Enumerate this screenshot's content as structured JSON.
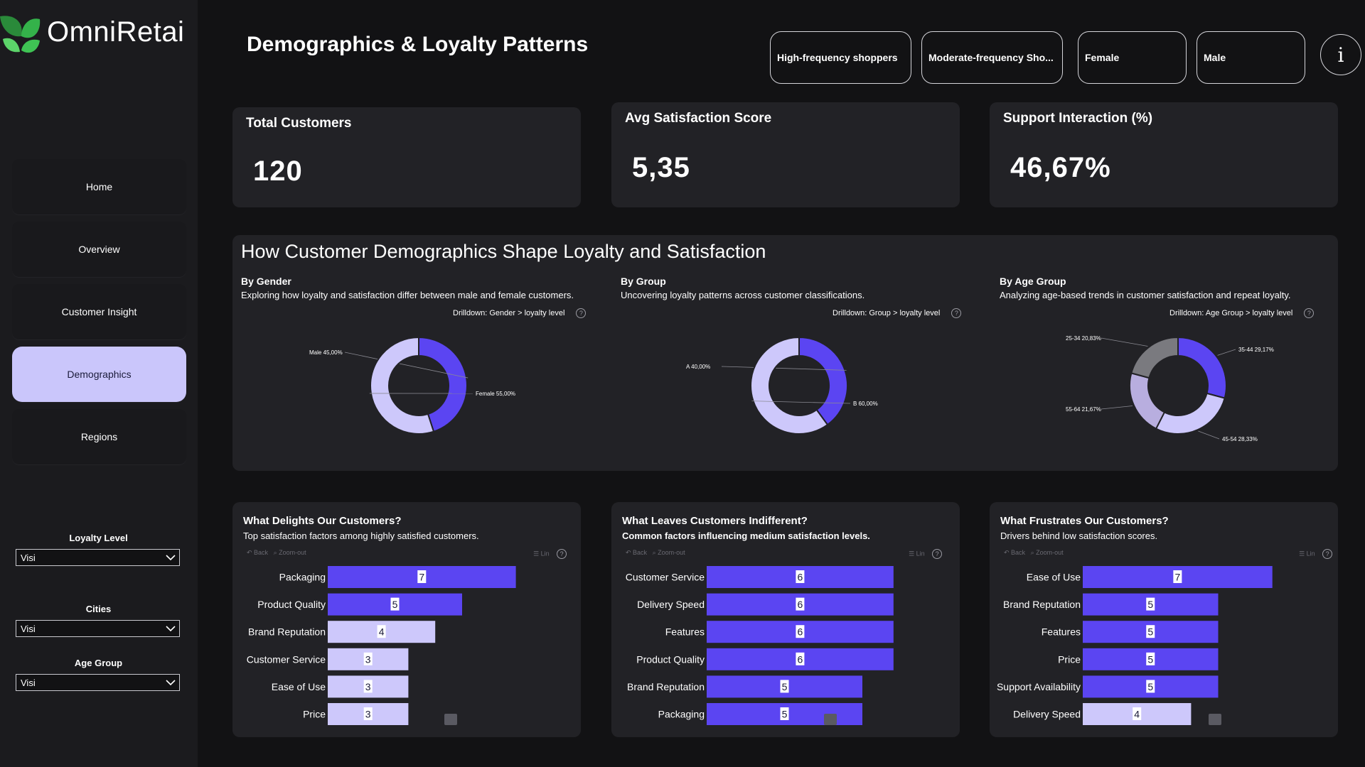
{
  "app": {
    "brand": "OmniRetai"
  },
  "sidebar": {
    "nav": [
      {
        "label": "Home",
        "active": false
      },
      {
        "label": "Overview",
        "active": false
      },
      {
        "label": "Customer Insight",
        "active": false
      },
      {
        "label": "Demographics",
        "active": true
      },
      {
        "label": "Regions",
        "active": false
      }
    ],
    "filters": [
      {
        "label": "Loyalty Level",
        "value": "Visi"
      },
      {
        "label": "Cities",
        "value": "Visi"
      },
      {
        "label": "Age Group",
        "value": "Visi"
      }
    ]
  },
  "header": {
    "title": "Demographics & Loyalty Patterns",
    "pills": [
      "High-frequency shoppers",
      "Moderate-frequency Sho...",
      "Female",
      "Male"
    ],
    "info_glyph": "i"
  },
  "kpis": [
    {
      "label": "Total Customers",
      "value": "120"
    },
    {
      "label": "Avg Satisfaction Score",
      "value": "5,35"
    },
    {
      "label": "Support Interaction (%)",
      "value": "46,67%"
    }
  ],
  "donut_section": {
    "title": "How Customer Demographics Shape Loyalty and Satisfaction",
    "charts": [
      {
        "title": "By Gender",
        "subtitle": "Exploring how loyalty and satisfaction differ between male and female customers.",
        "drilldown": "Drilldown: Gender > loyalty level"
      },
      {
        "title": "By Group",
        "subtitle": "Uncovering loyalty patterns across customer classifications.",
        "drilldown": "Drilldown: Group > loyalty level"
      },
      {
        "title": "By Age Group",
        "subtitle": "Analyzing age-based trends in customer satisfaction and repeat loyalty.",
        "drilldown": "Drilldown:  Age Group > loyalty level"
      }
    ]
  },
  "bar_section": {
    "charts": [
      {
        "title": "What Delights Our Customers?",
        "subtitle": "Top satisfaction factors among highly satisfied customers.",
        "subtitle_bold": false,
        "toolbar": {
          "back": "Back",
          "zoom": "Zoom-out",
          "lin": "Lin"
        }
      },
      {
        "title": "What Leaves Customers Indifferent?",
        "subtitle": "Common factors influencing medium satisfaction levels.",
        "subtitle_bold": true,
        "toolbar": {
          "back": "Back",
          "zoom": "Zoom-out",
          "lin": "Lin"
        }
      },
      {
        "title": "What Frustrates Our Customers?",
        "subtitle": "Drivers behind low satisfaction scores.",
        "subtitle_bold": false,
        "toolbar": {
          "back": "Back",
          "zoom": "Zoom-out",
          "lin": "Lin"
        }
      }
    ]
  },
  "colors": {
    "primary": "#5b45f2",
    "light": "#cdc8fb",
    "gray": "#7a7a7f",
    "mid": "#b8aedf"
  },
  "chart_data": [
    {
      "type": "pie",
      "variant": "donut",
      "slices": [
        {
          "label": "Male 45,00%",
          "value": 45.0,
          "color": "#5b45f2"
        },
        {
          "label": "Female 55,00%",
          "value": 55.0,
          "color": "#cdc8fb"
        }
      ]
    },
    {
      "type": "pie",
      "variant": "donut",
      "slices": [
        {
          "label": "A 40,00%",
          "value": 40.0,
          "color": "#5b45f2"
        },
        {
          "label": "B 60,00%",
          "value": 60.0,
          "color": "#cdc8fb"
        }
      ]
    },
    {
      "type": "pie",
      "variant": "donut",
      "slices": [
        {
          "label": "35-44 29,17%",
          "value": 29.17,
          "color": "#5b45f2"
        },
        {
          "label": "45-54 28,33%",
          "value": 28.33,
          "color": "#cdc8fb"
        },
        {
          "label": "55-64 21,67%",
          "value": 21.67,
          "color": "#b8aedf"
        },
        {
          "label": "25-34 20,83%",
          "value": 20.83,
          "color": "#7a7a7f"
        }
      ]
    },
    {
      "type": "bar",
      "orientation": "horizontal",
      "categories": [
        "Packaging",
        "Product Quality",
        "Brand Reputation",
        "Customer Service",
        "Ease of Use",
        "Price"
      ],
      "values": [
        7,
        5,
        4,
        3,
        3,
        3
      ],
      "xlim": [
        0,
        9
      ]
    },
    {
      "type": "bar",
      "orientation": "horizontal",
      "categories": [
        "Customer Service",
        "Delivery Speed",
        "Features",
        "Product Quality",
        "Brand Reputation",
        "Packaging"
      ],
      "values": [
        6,
        6,
        6,
        6,
        5,
        5
      ],
      "xlim": [
        0,
        9
      ]
    },
    {
      "type": "bar",
      "orientation": "horizontal",
      "categories": [
        "Ease of Use",
        "Brand Reputation",
        "Features",
        "Price",
        "Support Availability",
        "Delivery Speed"
      ],
      "values": [
        7,
        5,
        5,
        5,
        5,
        4
      ],
      "xlim": [
        0,
        9
      ]
    }
  ]
}
